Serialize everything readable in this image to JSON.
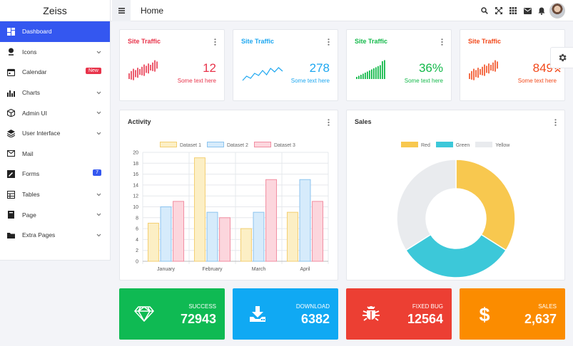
{
  "app": {
    "brand": "Zeiss",
    "page_title": "Home"
  },
  "topbar": {
    "icons": [
      "search-icon",
      "expand-icon",
      "apps-grid-icon",
      "mail-icon",
      "bell-icon"
    ]
  },
  "sidebar": {
    "items": [
      {
        "label": "Dashboard",
        "icon": "dashboard-icon",
        "active": true
      },
      {
        "label": "Icons",
        "icon": "icons-icon",
        "chevron": true
      },
      {
        "label": "Calendar",
        "icon": "calendar-icon",
        "badge": "New",
        "badge_color": "#e8334a"
      },
      {
        "label": "Charts",
        "icon": "bar-chart-icon",
        "chevron": true
      },
      {
        "label": "Admin UI",
        "icon": "cube-icon",
        "chevron": true
      },
      {
        "label": "User Interface",
        "icon": "layers-icon",
        "chevron": true
      },
      {
        "label": "Mail",
        "icon": "mail-icon"
      },
      {
        "label": "Forms",
        "icon": "pencil-icon",
        "badge": "7",
        "badge_color": "#3457f0"
      },
      {
        "label": "Tables",
        "icon": "table-icon",
        "chevron": true
      },
      {
        "label": "Page",
        "icon": "book-icon",
        "chevron": true
      },
      {
        "label": "Extra Pages",
        "icon": "folder-icon",
        "chevron": true
      }
    ]
  },
  "stat_cards": [
    {
      "title": "Site Traffic",
      "value": "12",
      "subtitle": "Some text here",
      "color": "#e8334a",
      "spark": "bars"
    },
    {
      "title": "Site Traffic",
      "value": "278",
      "subtitle": "Some text here",
      "color": "#1ea7f0",
      "spark": "line"
    },
    {
      "title": "Site Traffic",
      "value": "36%",
      "subtitle": "Some text here",
      "color": "#13b94a",
      "spark": "rising"
    },
    {
      "title": "Site Traffic",
      "value": "849",
      "subtitle": "Some text here",
      "color": "#f2491b",
      "spark": "bars",
      "trend_icon": "double-chevron-up-icon"
    }
  ],
  "activity": {
    "title": "Activity",
    "chart_data": {
      "type": "bar",
      "categories": [
        "January",
        "February",
        "March",
        "April"
      ],
      "series": [
        {
          "name": "Dataset 1",
          "values": [
            7,
            19,
            6,
            9
          ],
          "fill": "#fcefc5",
          "stroke": "#f3cf72"
        },
        {
          "name": "Dataset 2",
          "values": [
            10,
            9,
            9,
            15
          ],
          "fill": "#d6ebfb",
          "stroke": "#8cc4ef"
        },
        {
          "name": "Dataset 3",
          "values": [
            11,
            8,
            15,
            11
          ],
          "fill": "#fcd6dd",
          "stroke": "#f28ea2"
        }
      ],
      "ylim": [
        0,
        20
      ],
      "yticks": [
        0,
        2,
        4,
        6,
        8,
        10,
        12,
        14,
        16,
        18,
        20
      ],
      "legend": "top",
      "grid": true
    }
  },
  "sales": {
    "title": "Sales",
    "chart_data": {
      "type": "pie",
      "donut": true,
      "labels": [
        "Red",
        "Green",
        "Yellow"
      ],
      "values": [
        34,
        32,
        34
      ],
      "colors": [
        "#f8c84f",
        "#3cc8d9",
        "#e9ebee"
      ],
      "legend": "top"
    }
  },
  "tiles": [
    {
      "label": "SUCCESS",
      "value": "72943",
      "color": "#0fba53",
      "icon": "diamond-icon"
    },
    {
      "label": "DOWNLOAD",
      "value": "6382",
      "color": "#10a9f3",
      "icon": "download-icon"
    },
    {
      "label": "FIXED BUG",
      "value": "12564",
      "color": "#ec3f33",
      "icon": "bug-icon"
    },
    {
      "label": "SALES",
      "value": "2,637",
      "color": "#fb8c00",
      "icon": "dollar-icon"
    }
  ]
}
